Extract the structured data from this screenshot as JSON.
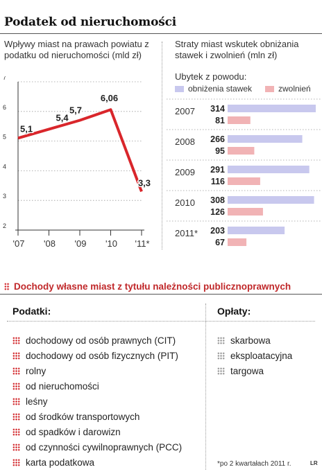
{
  "title": "Podatek od nieruchomości",
  "left_subtitle": "Wpływy miast na prawach powiatu z podatku od nieruchomości (mld zł)",
  "right_subtitle": "Straty miast wskutek obniżania stawek i zwolnień (mln zł)",
  "legend_title": "Ubytek z powodu:",
  "chart_data": [
    {
      "type": "line",
      "x": [
        "'07",
        "'08",
        "'09",
        "'10",
        "'11*"
      ],
      "y": [
        5.1,
        5.4,
        5.7,
        6.06,
        3.3
      ],
      "data_labels": [
        "5,1",
        "5,4",
        "5,7",
        "6,06",
        "3,3"
      ],
      "yticks": [
        "2",
        "3",
        "4",
        "5",
        "6",
        "7"
      ],
      "ylim": [
        2,
        7
      ],
      "line_color": "#d9262b"
    },
    {
      "type": "bar",
      "orientation": "horizontal",
      "categories": [
        "2007",
        "2008",
        "2009",
        "2010",
        "2011*"
      ],
      "series": [
        {
          "name": "obniżenia stawek",
          "values": [
            314,
            266,
            291,
            308,
            203
          ],
          "labels": [
            "314",
            "266",
            "291",
            "308",
            "203"
          ],
          "color": "#c8c8ee"
        },
        {
          "name": "zwolnień",
          "values": [
            81,
            95,
            116,
            126,
            67
          ],
          "labels": [
            "81",
            "95",
            "116",
            "126",
            "67"
          ],
          "color": "#f1b3b5"
        }
      ]
    }
  ],
  "section2": {
    "title": "Dochody własne miast z tytułu należności publicznoprawnych",
    "taxes_header": "Podatki:",
    "fees_header": "Opłaty:",
    "taxes": [
      "dochodowy od osób prawnych (CIT)",
      "dochodowy od osób fizycznych (PIT)",
      "rolny",
      "od nieruchomości",
      "leśny",
      "od środków transportowych",
      "od spadków i darowizn",
      "od czynności cywilnoprawnych (PCC)",
      "karta podatkowa"
    ],
    "fees": [
      "skarbowa",
      "eksploatacyjna",
      "targowa"
    ]
  },
  "footnote": "*po 2 kwartałach 2011 r.",
  "credit": "LR",
  "colors": {
    "accent_red": "#c0282a",
    "line_red": "#d9262b",
    "bar_blue": "#c8c8ee",
    "bar_pink": "#f1b3b5"
  }
}
